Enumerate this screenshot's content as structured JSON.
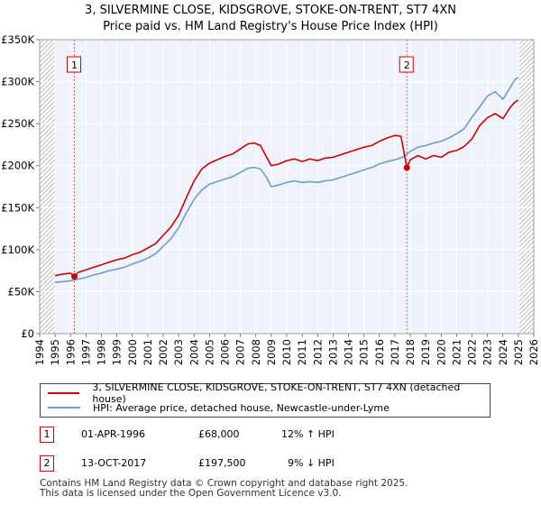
{
  "header": {
    "title": "3, SILVERMINE CLOSE, KIDSGROVE, STOKE-ON-TRENT, ST7 4XN",
    "subtitle": "Price paid vs. HM Land Registry's House Price Index (HPI)"
  },
  "chart_data": {
    "type": "line",
    "title": "3, SILVERMINE CLOSE, KIDSGROVE, STOKE-ON-TRENT, ST7 4XN",
    "subtitle": "Price paid vs. HM Land Registry's House Price Index (HPI)",
    "xlabel": "",
    "ylabel": "",
    "xlim": [
      1994,
      2026
    ],
    "ylim": [
      0,
      350000
    ],
    "x_ticks": [
      "1994",
      "1995",
      "1996",
      "1997",
      "1998",
      "1999",
      "2000",
      "2001",
      "2002",
      "2003",
      "2004",
      "2005",
      "2006",
      "2007",
      "2008",
      "2009",
      "2010",
      "2011",
      "2012",
      "2013",
      "2014",
      "2015",
      "2016",
      "2017",
      "2018",
      "2019",
      "2020",
      "2021",
      "2022",
      "2023",
      "2024",
      "2025",
      "2026"
    ],
    "y_ticks": [
      {
        "value": 0,
        "label": "£0"
      },
      {
        "value": 50000,
        "label": "£50K"
      },
      {
        "value": 100000,
        "label": "£100K"
      },
      {
        "value": 150000,
        "label": "£150K"
      },
      {
        "value": 200000,
        "label": "£200K"
      },
      {
        "value": 250000,
        "label": "£250K"
      },
      {
        "value": 300000,
        "label": "£300K"
      },
      {
        "value": 350000,
        "label": "£350K"
      }
    ],
    "grid": true,
    "series": [
      {
        "name": "3, SILVERMINE CLOSE, KIDSGROVE, STOKE-ON-TRENT, ST7 4XN (detached house)",
        "color": "#cc0000",
        "x": [
          1995.0,
          1995.5,
          1996.0,
          1996.25,
          1996.5,
          1997.0,
          1997.5,
          1998.0,
          1998.5,
          1999.0,
          1999.5,
          2000.0,
          2000.5,
          2001.0,
          2001.5,
          2002.0,
          2002.5,
          2003.0,
          2003.5,
          2004.0,
          2004.5,
          2005.0,
          2005.5,
          2006.0,
          2006.5,
          2007.0,
          2007.5,
          2007.9,
          2008.3,
          2008.7,
          2009.0,
          2009.5,
          2010.0,
          2010.5,
          2011.0,
          2011.5,
          2012.0,
          2012.5,
          2013.0,
          2013.5,
          2014.0,
          2014.5,
          2015.0,
          2015.5,
          2016.0,
          2016.5,
          2017.0,
          2017.4,
          2017.78,
          2018.0,
          2018.5,
          2019.0,
          2019.5,
          2020.0,
          2020.5,
          2021.0,
          2021.5,
          2022.0,
          2022.5,
          2023.0,
          2023.5,
          2024.0,
          2024.5,
          2024.8,
          2025.0
        ],
        "values": [
          69000,
          71000,
          72000,
          68000,
          73000,
          76000,
          79000,
          82000,
          85000,
          88000,
          90000,
          94000,
          97000,
          102000,
          107000,
          117000,
          127000,
          141000,
          162000,
          182000,
          196000,
          203000,
          207000,
          211000,
          214000,
          220000,
          226000,
          227000,
          224000,
          210000,
          200000,
          202000,
          206000,
          208000,
          205000,
          208000,
          206000,
          209000,
          210000,
          213000,
          216000,
          219000,
          222000,
          224000,
          229000,
          233000,
          236000,
          235000,
          197500,
          207000,
          212000,
          208000,
          212000,
          210000,
          216000,
          218000,
          223000,
          232000,
          248000,
          257000,
          262000,
          256000,
          270000,
          276000,
          278000
        ]
      },
      {
        "name": "HPI: Average price, detached house, Newcastle-under-Lyme",
        "color": "#6f9bd1",
        "x": [
          1995.0,
          1995.5,
          1996.0,
          1996.5,
          1997.0,
          1997.5,
          1998.0,
          1998.5,
          1999.0,
          1999.5,
          2000.0,
          2000.5,
          2001.0,
          2001.5,
          2002.0,
          2002.5,
          2003.0,
          2003.5,
          2004.0,
          2004.5,
          2005.0,
          2005.5,
          2006.0,
          2006.5,
          2007.0,
          2007.5,
          2007.9,
          2008.3,
          2008.7,
          2009.0,
          2009.5,
          2010.0,
          2010.5,
          2011.0,
          2011.5,
          2012.0,
          2012.5,
          2013.0,
          2013.5,
          2014.0,
          2014.5,
          2015.0,
          2015.5,
          2016.0,
          2016.5,
          2017.0,
          2017.5,
          2018.0,
          2018.5,
          2019.0,
          2019.5,
          2020.0,
          2020.5,
          2021.0,
          2021.5,
          2022.0,
          2022.5,
          2023.0,
          2023.5,
          2024.0,
          2024.5,
          2024.8,
          2025.0
        ],
        "values": [
          61000,
          62000,
          63000,
          65000,
          67000,
          70000,
          72000,
          75000,
          77000,
          79000,
          83000,
          86000,
          90000,
          95000,
          104000,
          113000,
          126000,
          144000,
          160000,
          171000,
          178000,
          181000,
          184000,
          187000,
          192000,
          197000,
          198000,
          196000,
          186000,
          175000,
          177000,
          180000,
          182000,
          180000,
          181000,
          180000,
          182000,
          183000,
          186000,
          189000,
          192000,
          195000,
          198000,
          202000,
          205000,
          207000,
          210000,
          217000,
          222000,
          224000,
          227000,
          229000,
          233000,
          238000,
          244000,
          258000,
          270000,
          283000,
          288000,
          279000,
          294000,
          303000,
          305000
        ]
      }
    ],
    "sales": [
      {
        "label": "1",
        "x": 1996.25,
        "value": 68000
      },
      {
        "label": "2",
        "x": 2017.78,
        "value": 197500
      }
    ]
  },
  "legend": {
    "entries": [
      {
        "label": "3, SILVERMINE CLOSE, KIDSGROVE, STOKE-ON-TRENT, ST7 4XN (detached house)",
        "color": "#cc0000"
      },
      {
        "label": "HPI: Average price, detached house, Newcastle-under-Lyme",
        "color": "#6f9bd1"
      }
    ]
  },
  "sales_table": [
    {
      "marker": "1",
      "date": "01-APR-1996",
      "price": "£68,000",
      "hpi": "12% ↑ HPI"
    },
    {
      "marker": "2",
      "date": "13-OCT-2017",
      "price": "£197,500",
      "hpi": "9% ↓ HPI"
    }
  ],
  "footer": {
    "line1": "Contains HM Land Registry data © Crown copyright and database right 2025.",
    "line2": "This data is licensed under the Open Government Licence v3.0."
  }
}
